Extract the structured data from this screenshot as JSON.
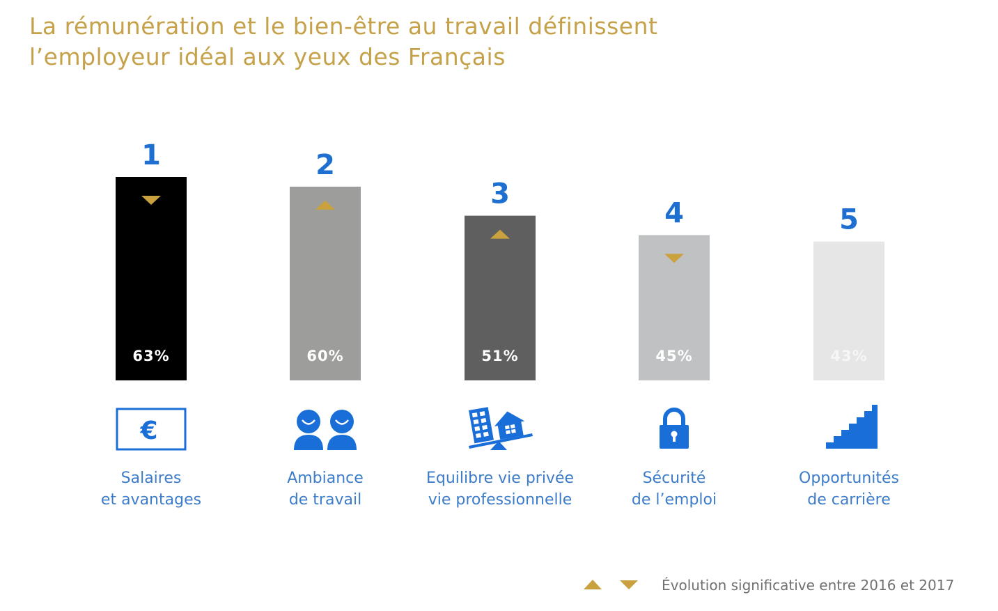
{
  "title": {
    "line1": "La rémunération et le bien-être au travail définissent",
    "line2": "l’employeur idéal aux yeux des Français"
  },
  "colors": {
    "title": "#c5a24a",
    "rank": "#1e6fd0",
    "caption": "#3d7cc9",
    "icon": "#1a6ed8",
    "arrow": "#c9a23e"
  },
  "chart_data": {
    "type": "bar",
    "title": "La rémunération et le bien-être au travail définissent l’employeur idéal aux yeux des Français",
    "ylim": [
      0,
      100
    ],
    "categories": [
      "Salaires et avantages",
      "Ambiance de travail",
      "Equilibre vie privée vie professionnelle",
      "Sécurité de l’emploi",
      "Opportunités de carrière"
    ],
    "values": [
      63,
      60,
      51,
      45,
      43
    ],
    "bars": [
      {
        "rank": "1",
        "value": 63,
        "label": "63%",
        "color": "#000000",
        "label_color": "#ffffff",
        "trend": "down",
        "icon": "euro-banknote-icon",
        "caption": [
          "Salaires",
          "et avantages"
        ]
      },
      {
        "rank": "2",
        "value": 60,
        "label": "60%",
        "color": "#9d9d9b",
        "label_color": "#ffffff",
        "trend": "up",
        "icon": "two-people-smiling-icon",
        "caption": [
          "Ambiance",
          "de travail"
        ]
      },
      {
        "rank": "3",
        "value": 51,
        "label": "51%",
        "color": "#5f5f5f",
        "label_color": "#ffffff",
        "trend": "up",
        "icon": "work-life-balance-icon",
        "caption": [
          "Equilibre vie privée",
          "vie professionnelle"
        ]
      },
      {
        "rank": "4",
        "value": 45,
        "label": "45%",
        "color": "#bfc1c3",
        "label_color": "#ffffff",
        "trend": "down",
        "icon": "padlock-icon",
        "caption": [
          "Sécurité",
          "de l’emploi"
        ]
      },
      {
        "rank": "5",
        "value": 43,
        "label": "43%",
        "color": "#e6e6e6",
        "label_color": "#f6f6f6",
        "trend": "none",
        "icon": "staircase-icon",
        "caption": [
          "Opportunités",
          "de carrière"
        ]
      }
    ],
    "legend": {
      "text": "Évolution significative entre 2016 et 2017",
      "symbols": [
        "up",
        "down"
      ]
    }
  }
}
